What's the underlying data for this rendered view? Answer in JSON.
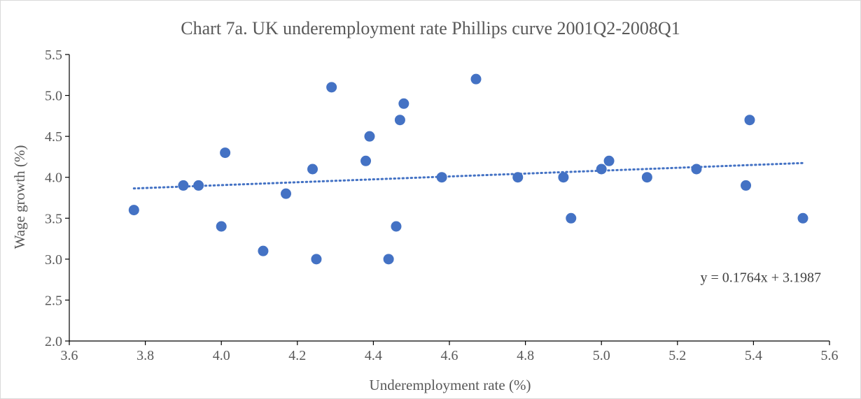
{
  "chart_data": {
    "type": "scatter",
    "title": "Chart 7a.  UK underemployment rate Phillips curve 2001Q2-2008Q1",
    "xlabel": "Underemployment rate (%)",
    "ylabel": "Wage growth (%)",
    "xlim": [
      3.6,
      5.6
    ],
    "ylim": [
      2.0,
      5.5
    ],
    "xticks": [
      "3.6",
      "3.8",
      "4.0",
      "4.2",
      "4.4",
      "4.6",
      "4.8",
      "5.0",
      "5.2",
      "5.4",
      "5.6"
    ],
    "yticks": [
      "2.0",
      "2.5",
      "3.0",
      "3.5",
      "4.0",
      "4.5",
      "5.0",
      "5.5"
    ],
    "grid": false,
    "legend": "none",
    "point_color": "#4472C4",
    "trendline": {
      "type": "linear",
      "slope": 0.1764,
      "intercept": 3.1987,
      "x_range": [
        3.77,
        5.53
      ],
      "equation_label": "y = 0.1764x + 3.1987"
    },
    "points": [
      {
        "x": 3.77,
        "y": 3.6
      },
      {
        "x": 3.9,
        "y": 3.9
      },
      {
        "x": 3.94,
        "y": 3.9
      },
      {
        "x": 4.0,
        "y": 3.4
      },
      {
        "x": 4.01,
        "y": 4.3
      },
      {
        "x": 4.11,
        "y": 3.1
      },
      {
        "x": 4.17,
        "y": 3.8
      },
      {
        "x": 4.24,
        "y": 4.1
      },
      {
        "x": 4.25,
        "y": 3.0
      },
      {
        "x": 4.29,
        "y": 5.1
      },
      {
        "x": 4.38,
        "y": 4.2
      },
      {
        "x": 4.39,
        "y": 4.5
      },
      {
        "x": 4.44,
        "y": 3.0
      },
      {
        "x": 4.46,
        "y": 3.4
      },
      {
        "x": 4.47,
        "y": 4.7
      },
      {
        "x": 4.48,
        "y": 4.9
      },
      {
        "x": 4.58,
        "y": 4.0
      },
      {
        "x": 4.67,
        "y": 5.2
      },
      {
        "x": 4.78,
        "y": 4.0
      },
      {
        "x": 4.9,
        "y": 4.0
      },
      {
        "x": 4.92,
        "y": 3.5
      },
      {
        "x": 5.0,
        "y": 4.1
      },
      {
        "x": 5.02,
        "y": 4.2
      },
      {
        "x": 5.12,
        "y": 4.0
      },
      {
        "x": 5.25,
        "y": 4.1
      },
      {
        "x": 5.38,
        "y": 3.9
      },
      {
        "x": 5.39,
        "y": 4.7
      },
      {
        "x": 5.53,
        "y": 3.5
      }
    ]
  }
}
